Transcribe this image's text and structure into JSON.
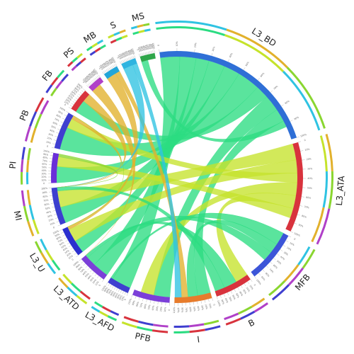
{
  "chart_data": {
    "type": "chord",
    "title": "",
    "segments": [
      {
        "name": "L3_BD",
        "value": 23,
        "color": "#2f6fd6"
      },
      {
        "name": "L3_ATA",
        "value": 12,
        "color": "#d8333d"
      },
      {
        "name": "MFB",
        "value": 7,
        "color": "#3c55d8"
      },
      {
        "name": "B",
        "value": 5,
        "color": "#d8333d"
      },
      {
        "name": "I",
        "value": 5,
        "color": "#e77c2c"
      },
      {
        "name": "PFB",
        "value": 5,
        "color": "#7b3fd8"
      },
      {
        "name": "L3_AFD",
        "value": 3,
        "color": "#3f3fcf"
      },
      {
        "name": "L3_ATD",
        "value": 4,
        "color": "#7b3fd8"
      },
      {
        "name": "L3_U",
        "value": 4,
        "color": "#2b2fcf"
      },
      {
        "name": "MI",
        "value": 5,
        "color": "#3c3fcf"
      },
      {
        "name": "PI",
        "value": 4,
        "color": "#6a2fd8"
      },
      {
        "name": "PB",
        "value": 5,
        "color": "#3f3fd0"
      },
      {
        "name": "FB",
        "value": 3,
        "color": "#d8333d"
      },
      {
        "name": "PS",
        "value": 2,
        "color": "#b040c8"
      },
      {
        "name": "MB",
        "value": 2,
        "color": "#23a6d8"
      },
      {
        "name": "S",
        "value": 2,
        "color": "#2fb4e0"
      },
      {
        "name": "MS",
        "value": 2,
        "color": "#2fa64a"
      }
    ],
    "tick_labels": [
      "0",
      "10%",
      "20%",
      "30%",
      "40%",
      "50%",
      "60%",
      "70%",
      "80%",
      "90%",
      "100%"
    ],
    "links": [
      {
        "source": "L3_BD",
        "target": "L3_AFD",
        "value": 3,
        "color": "#2bdc82"
      },
      {
        "source": "L3_BD",
        "target": "L3_ATD",
        "value": 2.5,
        "color": "#2bdc82"
      },
      {
        "source": "L3_BD",
        "target": "L3_U",
        "value": 2,
        "color": "#2bdc82"
      },
      {
        "source": "L3_BD",
        "target": "MI",
        "value": 2.5,
        "color": "#2bdc82"
      },
      {
        "source": "L3_BD",
        "target": "PI",
        "value": 2.5,
        "color": "#2bdc82"
      },
      {
        "source": "L3_BD",
        "target": "PB",
        "value": 3.5,
        "color": "#2bdc82"
      },
      {
        "source": "L3_BD",
        "target": "FB",
        "value": 2,
        "color": "#2bdc82"
      },
      {
        "source": "L3_BD",
        "target": "PFB",
        "value": 2.5,
        "color": "#2bdc82"
      },
      {
        "source": "L3_BD",
        "target": "I",
        "value": 2,
        "color": "#2bdc82"
      },
      {
        "source": "L3_BD",
        "target": "MS",
        "value": 1,
        "color": "#2bdc82"
      },
      {
        "source": "L3_ATA",
        "target": "MI",
        "value": 2.5,
        "color": "#c5e32b"
      },
      {
        "source": "L3_ATA",
        "target": "L3_U",
        "value": 2,
        "color": "#c5e32b"
      },
      {
        "source": "L3_ATA",
        "target": "PB",
        "value": 1.5,
        "color": "#c5e32b"
      },
      {
        "source": "L3_ATA",
        "target": "PFB",
        "value": 2,
        "color": "#c5e32b"
      },
      {
        "source": "L3_ATA",
        "target": "B",
        "value": 2,
        "color": "#c5e32b"
      },
      {
        "source": "L3_ATA",
        "target": "PI",
        "value": 1.5,
        "color": "#c5e32b"
      },
      {
        "source": "MFB",
        "target": "L3_AFD",
        "value": 2,
        "color": "#2bdc82"
      },
      {
        "source": "MFB",
        "target": "I",
        "value": 1.5,
        "color": "#2bdc82"
      },
      {
        "source": "MFB",
        "target": "L3_ATD",
        "value": 1.5,
        "color": "#2bdc82"
      },
      {
        "source": "B",
        "target": "L3_ATD",
        "value": 2,
        "color": "#2bdc82"
      },
      {
        "source": "B",
        "target": "MI",
        "value": 1.5,
        "color": "#2bdc82"
      },
      {
        "source": "MB",
        "target": "L3_U",
        "value": 1.5,
        "color": "#e2b12c"
      },
      {
        "source": "MB",
        "target": "I",
        "value": 1,
        "color": "#e2b12c"
      },
      {
        "source": "PS",
        "target": "L3_ATD",
        "value": 1.5,
        "color": "#e2b12c"
      },
      {
        "source": "FB",
        "target": "MI",
        "value": 1.5,
        "color": "#e2b12c"
      },
      {
        "source": "PB",
        "target": "MI",
        "value": 1,
        "color": "#e2b12c"
      },
      {
        "source": "S",
        "target": "MI",
        "value": 1.5,
        "color": "#2fc3e2"
      },
      {
        "source": "S",
        "target": "I",
        "value": 1,
        "color": "#2fc3e2"
      },
      {
        "source": "PB",
        "target": "L3_U",
        "value": 1,
        "color": "#8ad630"
      },
      {
        "source": "PI",
        "target": "MI",
        "value": 1,
        "color": "#8ad630"
      }
    ],
    "legend": "none",
    "grid": false
  }
}
